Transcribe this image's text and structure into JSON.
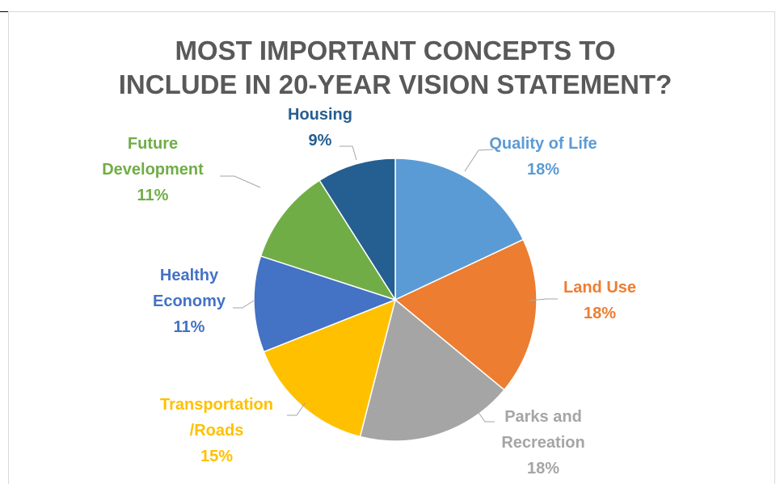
{
  "chart_data": {
    "type": "pie",
    "title": "MOST IMPORTANT CONCEPTS TO\nINCLUDE IN 20-YEAR VISION STATEMENT?",
    "categories": [
      "Quality of  Life",
      "Land Use",
      "Parks and\nRecreation",
      "Transportation\n/Roads",
      "Healthy\nEconomy",
      "Future\nDevelopment",
      "Housing"
    ],
    "values": [
      18,
      18,
      18,
      15,
      11,
      11,
      9
    ],
    "value_labels": [
      "18%",
      "18%",
      "18%",
      "15%",
      "11%",
      "11%",
      "9%"
    ],
    "colors": [
      "#5b9bd5",
      "#ed7d31",
      "#a5a5a5",
      "#ffc000",
      "#4472c4",
      "#70ad47",
      "#255e91"
    ]
  }
}
